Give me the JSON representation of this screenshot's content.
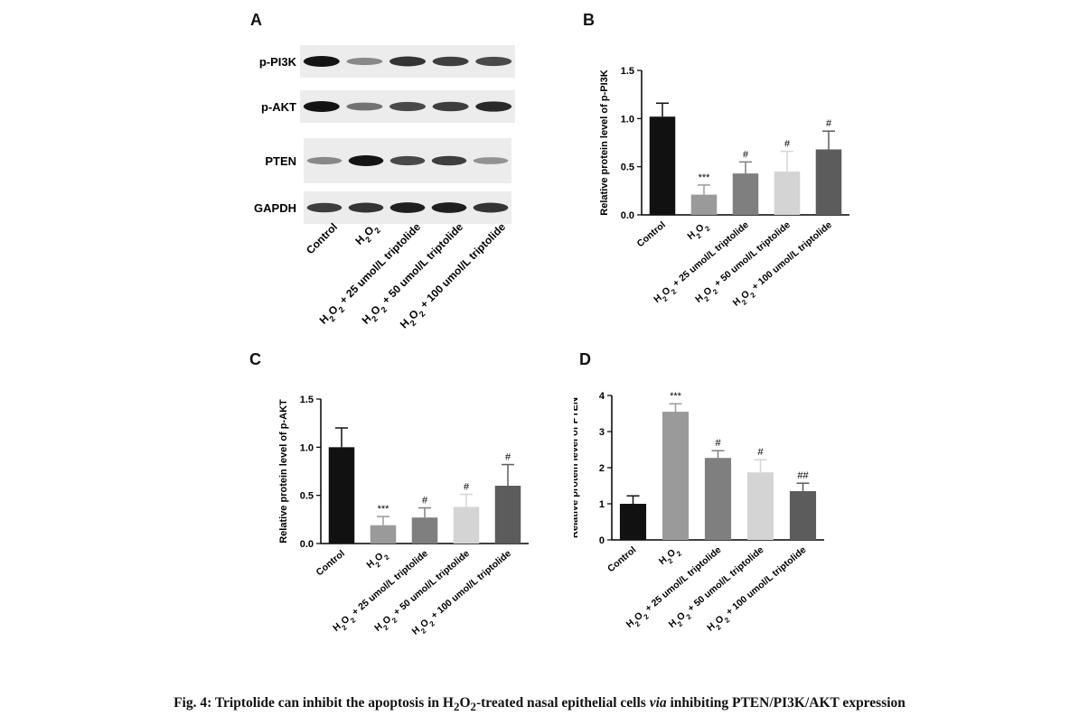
{
  "panels": {
    "a": "A",
    "b": "B",
    "c": "C",
    "d": "D"
  },
  "blot": {
    "band_labels": [
      "p-PI3K",
      "p-AKT",
      "PTEN",
      "GAPDH"
    ],
    "lanes": [
      "Control",
      "H2O2",
      "H2O2 + 25 umol/L triptolide",
      "H2O2 + 50 umol/L triptolide",
      "H2O2 + 100 umol/L triptolide"
    ]
  },
  "chart_data": [
    {
      "type": "bar",
      "panel": "B",
      "title": "",
      "xlabel": "",
      "ylabel": "Relative protein level of p-PI3K",
      "categories": [
        "Control",
        "H2O2",
        "H2O2 + 25 umol/L triptolide",
        "H2O2 + 50 umol/L triptolide",
        "H2O2 + 100 umol/L triptolide"
      ],
      "values": [
        1.02,
        0.21,
        0.43,
        0.45,
        0.68
      ],
      "errors": [
        0.14,
        0.1,
        0.12,
        0.21,
        0.19
      ],
      "significance": [
        "",
        "***",
        "#",
        "#",
        "#"
      ],
      "ylim": [
        0,
        1.5
      ],
      "yticks": [
        "0.0",
        "0.5",
        "1.0",
        "1.5"
      ],
      "bar_colors": [
        "#111111",
        "#9a9a9a",
        "#7f7f7f",
        "#d4d4d4",
        "#5c5c5c"
      ]
    },
    {
      "type": "bar",
      "panel": "C",
      "title": "",
      "xlabel": "",
      "ylabel": "Relative protein level of p-AKT",
      "categories": [
        "Control",
        "H2O2",
        "H2O2 + 25 umol/L triptolide",
        "H2O2 + 50 umol/L triptolide",
        "H2O2 + 100 umol/L triptolide"
      ],
      "values": [
        1.0,
        0.19,
        0.27,
        0.38,
        0.6
      ],
      "errors": [
        0.2,
        0.09,
        0.1,
        0.13,
        0.22
      ],
      "significance": [
        "",
        "***",
        "#",
        "#",
        "#"
      ],
      "ylim": [
        0,
        1.5
      ],
      "yticks": [
        "0.0",
        "0.5",
        "1.0",
        "1.5"
      ],
      "bar_colors": [
        "#111111",
        "#9a9a9a",
        "#7f7f7f",
        "#d4d4d4",
        "#5c5c5c"
      ]
    },
    {
      "type": "bar",
      "panel": "D",
      "title": "",
      "xlabel": "",
      "ylabel": "Relative protein level of PTEN",
      "categories": [
        "Control",
        "H2O2",
        "H2O2 + 25 umol/L triptolide",
        "H2O2 + 50 umol/L triptolide",
        "H2O2 + 100 umol/L triptolide"
      ],
      "values": [
        1.0,
        3.55,
        2.27,
        1.87,
        1.35
      ],
      "errors": [
        0.22,
        0.22,
        0.2,
        0.35,
        0.22
      ],
      "significance": [
        "",
        "***",
        "#",
        "#",
        "##"
      ],
      "ylim": [
        0,
        4
      ],
      "yticks": [
        "0",
        "1",
        "2",
        "3",
        "4"
      ],
      "bar_colors": [
        "#111111",
        "#9a9a9a",
        "#7f7f7f",
        "#d4d4d4",
        "#5c5c5c"
      ]
    }
  ],
  "caption": {
    "prefix": "Fig. 4: Triptolide can inhibit the apoptosis in H",
    "sub1": "2",
    "mid1": "O",
    "sub2": "2",
    "mid2": "-treated nasal epithelial cells ",
    "italic": "via",
    "suffix": " inhibiting PTEN/PI3K/AKT expression"
  }
}
